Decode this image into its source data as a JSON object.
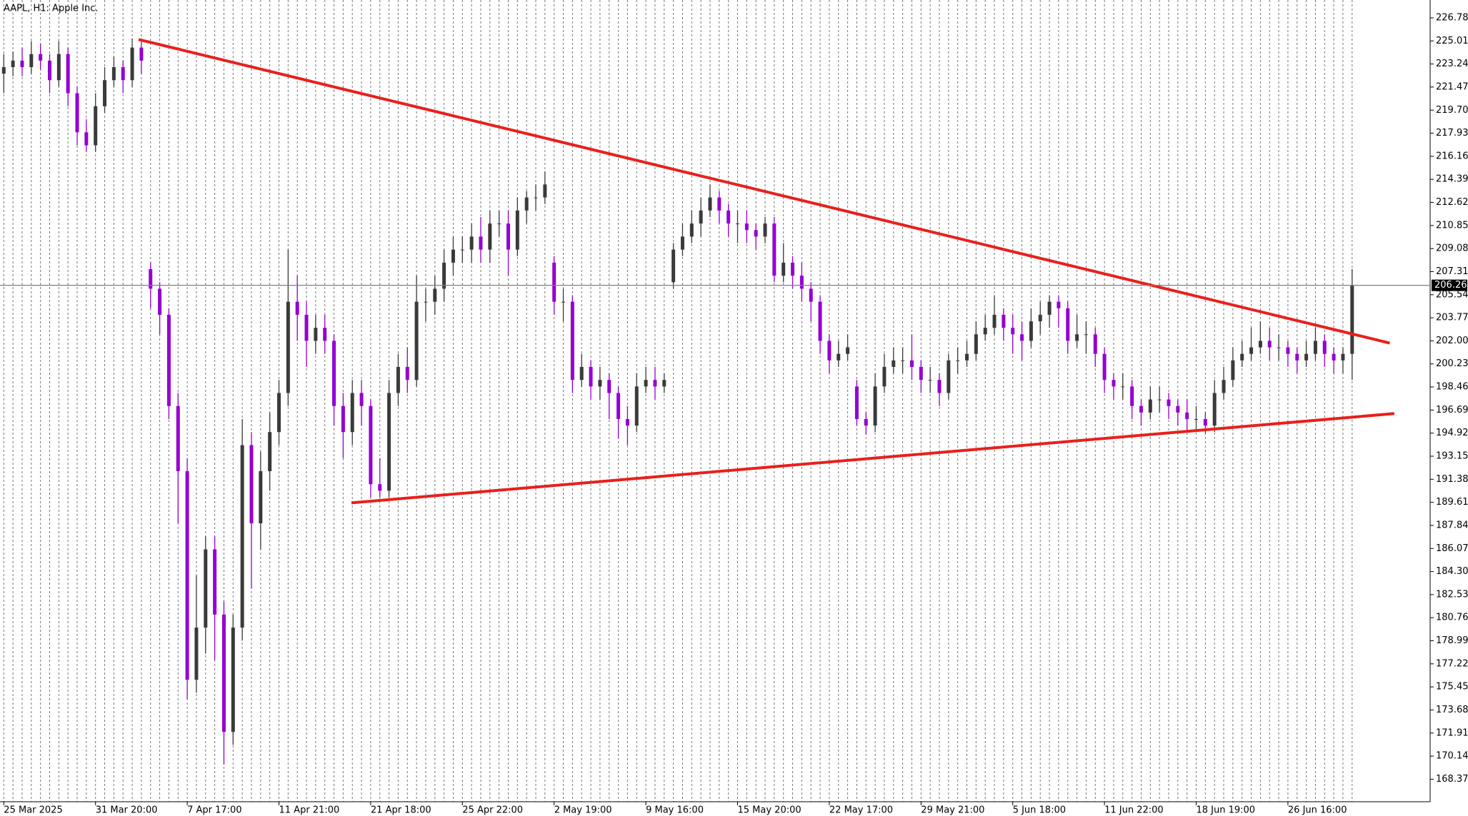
{
  "chart_data": {
    "type": "candlestick",
    "title": "AAPL, H1:  Apple Inc.",
    "categories": [
      "25 Mar 2025",
      null,
      null,
      null,
      null,
      null,
      null,
      null,
      null,
      null,
      "31 Mar 20:00",
      null,
      null,
      null,
      null,
      null,
      null,
      null,
      null,
      null,
      "7 Apr 17:00",
      null,
      null,
      null,
      null,
      null,
      null,
      null,
      null,
      null,
      "11 Apr 21:00",
      null,
      null,
      null,
      null,
      null,
      null,
      null,
      null,
      null,
      "21 Apr 18:00",
      null,
      null,
      null,
      null,
      null,
      null,
      null,
      null,
      null,
      "25 Apr 22:00",
      null,
      null,
      null,
      null,
      null,
      null,
      null,
      null,
      null,
      "2 May 19:00",
      null,
      null,
      null,
      null,
      null,
      null,
      null,
      null,
      null,
      "9 May 16:00",
      null,
      null,
      null,
      null,
      null,
      null,
      null,
      null,
      null,
      "15 May 20:00",
      null,
      null,
      null,
      null,
      null,
      null,
      null,
      null,
      null,
      "22 May 17:00",
      null,
      null,
      null,
      null,
      null,
      null,
      null,
      null,
      null,
      "29 May 21:00",
      null,
      null,
      null,
      null,
      null,
      null,
      null,
      null,
      null,
      "5 Jun 18:00",
      null,
      null,
      null,
      null,
      null,
      null,
      null,
      null,
      null,
      "11 Jun 22:00",
      null,
      null,
      null,
      null,
      null,
      null,
      null,
      null,
      null,
      "18 Jun 19:00",
      null,
      null,
      null,
      null,
      null,
      null,
      null,
      null,
      null,
      "26 Jun 16:00",
      null,
      null,
      null,
      null,
      null,
      null,
      null
    ],
    "open": [
      222.5,
      223,
      223.5,
      223,
      224,
      223.5,
      222,
      224,
      221,
      218,
      217,
      220,
      222,
      223,
      222,
      224.5,
      207.5,
      206,
      204,
      197,
      192,
      176,
      180,
      186,
      181,
      172,
      180,
      194,
      188,
      192,
      195,
      198,
      205,
      204,
      202,
      203,
      202,
      197,
      195,
      198,
      197,
      191,
      190.5,
      198,
      200,
      199,
      205,
      205,
      206,
      208,
      209,
      209,
      210,
      209,
      211,
      211,
      209,
      212,
      213,
      213,
      208,
      205,
      205,
      199,
      200,
      198.5,
      199,
      198,
      196,
      195.5,
      198.5,
      199,
      198.5,
      206.5,
      209,
      210,
      211,
      212,
      213,
      212,
      211,
      211,
      210.5,
      210,
      211,
      207,
      208,
      207,
      206,
      205,
      202,
      200.5,
      201,
      198.5,
      196,
      195.5,
      198.5,
      200,
      200.5,
      200.5,
      200,
      199,
      199,
      198,
      200.5,
      200.5,
      201,
      202.5,
      203,
      204,
      203,
      202.5,
      202,
      203.5,
      204,
      205,
      204.5,
      202,
      202.5,
      202.5,
      201,
      199,
      198.5,
      198.5,
      197,
      196.5,
      197.5,
      197.5,
      197,
      196.5,
      196,
      196,
      195.5,
      198,
      199,
      200.5,
      201,
      201.5,
      202,
      201.5,
      201.5,
      201,
      200.5,
      201,
      202,
      201,
      200.5,
      201
    ],
    "high": [
      224,
      224.2,
      224.5,
      225,
      224.8,
      224,
      225,
      224.5,
      221.5,
      219,
      221,
      223,
      223.8,
      223.5,
      225.2,
      225,
      208,
      206.5,
      204.5,
      198,
      193,
      184,
      187,
      187,
      182,
      181,
      196,
      195,
      193.5,
      196.5,
      199,
      209,
      207,
      205,
      204,
      204,
      202.5,
      198,
      199,
      199,
      197.5,
      193,
      199,
      201,
      201.5,
      207,
      206,
      207,
      209,
      210,
      210,
      211,
      211.5,
      212,
      212,
      212,
      213,
      213.5,
      214,
      215,
      208.5,
      206,
      205.5,
      201,
      200.5,
      200,
      199.5,
      198.5,
      197,
      199.5,
      200,
      200,
      199.5,
      209.5,
      211,
      212,
      213,
      214,
      213.5,
      212.5,
      212,
      212,
      211,
      211.5,
      211.5,
      209.5,
      208.5,
      208,
      206.5,
      205.5,
      202.5,
      202,
      202.5,
      199,
      196.5,
      199.5,
      201,
      201.5,
      201.5,
      202.5,
      200.5,
      200,
      199.5,
      201,
      201.5,
      202,
      203.5,
      204,
      205.5,
      204.5,
      204,
      203.5,
      204.5,
      205,
      205.5,
      205.5,
      205,
      204,
      203.5,
      203,
      201.5,
      199.5,
      199.5,
      199,
      197.5,
      198.5,
      198.5,
      198,
      197.5,
      197.5,
      197,
      196.5,
      199,
      200,
      201.5,
      202,
      203,
      203.5,
      203,
      202.5,
      202,
      201.5,
      202,
      203,
      202.5,
      201.5,
      201.5,
      207.5
    ],
    "low": [
      221,
      222.3,
      222.3,
      222.5,
      222.8,
      221,
      221.5,
      220,
      217,
      216.5,
      216.5,
      219.5,
      221.5,
      221,
      221.5,
      222.5,
      204.5,
      202.5,
      196,
      188,
      174.5,
      175,
      178,
      177.5,
      169.5,
      171,
      179,
      183,
      186,
      190.5,
      194,
      197,
      202,
      200,
      201,
      201,
      195.5,
      193,
      194,
      195.5,
      190,
      190,
      190,
      197,
      198,
      198.5,
      203.5,
      204,
      205,
      207,
      208,
      208,
      208,
      208,
      210,
      207,
      208.5,
      211,
      212,
      212.5,
      204,
      203.5,
      198,
      198.5,
      197.5,
      197.5,
      196,
      194.5,
      194,
      195,
      198,
      197.5,
      198,
      206,
      208.5,
      209.5,
      210,
      211.5,
      211,
      210,
      209.5,
      209.5,
      209,
      209.5,
      206.5,
      206.5,
      206,
      205,
      203.5,
      201,
      199.5,
      200,
      200.5,
      195.5,
      194.8,
      195,
      198,
      199.5,
      199.5,
      199,
      198,
      198,
      197,
      197.5,
      199.5,
      200,
      200.5,
      202,
      202.5,
      202,
      201,
      200.5,
      201.5,
      202.5,
      203,
      203,
      201,
      201.5,
      201,
      200,
      198,
      197.5,
      197.5,
      196,
      195.5,
      196,
      196.5,
      196,
      195.5,
      195,
      195,
      194.9,
      195,
      197.5,
      198.5,
      200,
      200.5,
      201,
      200.5,
      200.5,
      200,
      199.5,
      200,
      200.5,
      200,
      199.5,
      199.5,
      199
    ],
    "close": [
      223,
      223.5,
      223,
      224,
      223.5,
      222,
      224,
      221,
      218,
      217,
      220,
      222,
      223,
      222,
      224.5,
      223.5,
      206,
      204,
      197,
      192,
      176,
      180,
      186,
      181,
      172,
      180,
      194,
      188,
      192,
      195,
      198,
      205,
      204,
      202,
      203,
      202,
      197,
      195,
      198,
      197,
      191,
      190.5,
      198,
      200,
      199,
      205,
      205,
      206,
      208,
      209,
      209,
      210,
      209,
      211,
      211,
      209,
      212,
      213,
      213,
      214,
      205,
      205,
      199,
      200,
      198.5,
      199,
      198,
      196,
      195.5,
      198.5,
      199,
      198.5,
      199,
      209,
      210,
      211,
      212,
      213,
      212,
      211,
      211,
      210.5,
      210,
      211,
      207,
      208,
      207,
      206,
      205,
      202,
      200.5,
      201,
      201.5,
      196,
      195.5,
      198.5,
      200,
      200.5,
      200.5,
      200,
      199,
      199,
      198,
      200.5,
      200.5,
      201,
      202.5,
      203,
      204,
      203,
      202.5,
      202,
      203.5,
      204,
      205,
      204.5,
      202,
      202.5,
      202.5,
      201,
      199,
      198.5,
      198.5,
      197,
      196.5,
      197.5,
      197.5,
      197,
      196.5,
      196,
      196,
      195.5,
      198,
      199,
      200.5,
      201,
      201.5,
      202,
      201.5,
      201.5,
      201,
      200.5,
      201,
      202,
      201,
      200.5,
      201,
      206.26
    ],
    "up_color": "#3a3a3a",
    "down_color": "#9400d3",
    "trendlines": [
      {
        "x": [
          14.7,
          151.1
        ],
        "y": [
          225.12,
          201.83
        ]
      },
      {
        "x": [
          37.9,
          151.6
        ],
        "y": [
          189.57,
          196.42
        ]
      }
    ],
    "trendline_color": "#e8201c",
    "ylim": [
      166.64,
      228.15
    ],
    "yticks": [
      226.78,
      225.01,
      223.24,
      221.47,
      {
        "value": 219.7,
        "label": "219.70"
      },
      217.93,
      216.16,
      214.39,
      212.62,
      210.85,
      209.08,
      207.31,
      205.54,
      203.77,
      {
        "value": 202,
        "label": "202.00"
      },
      200.23,
      198.46,
      196.69,
      194.92,
      193.15,
      191.38,
      189.61,
      187.84,
      186.07,
      {
        "value": 184.3,
        "label": "184.30"
      },
      182.53,
      180.76,
      178.99,
      177.22,
      175.45,
      173.68,
      171.91,
      170.14,
      168.37
    ],
    "grid": true
  }
}
